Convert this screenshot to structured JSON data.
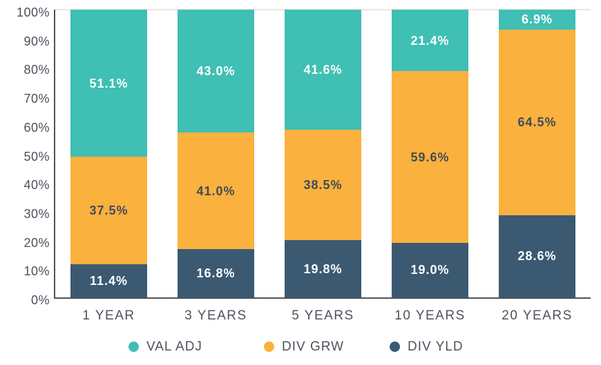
{
  "chart_data": {
    "type": "bar",
    "variant": "stacked-percent-column",
    "title": "",
    "categories": [
      "1 YEAR",
      "3 YEARS",
      "5 YEARS",
      "10 YEARS",
      "20 YEARS"
    ],
    "series": [
      {
        "name": "VAL ADJ",
        "color": "#40bfb4",
        "label_color": "#ffffff",
        "values": [
          51.1,
          43.0,
          41.6,
          21.4,
          6.9
        ]
      },
      {
        "name": "DIV GRW",
        "color": "#fbb13e",
        "label_color": "#414b58",
        "values": [
          37.5,
          41.0,
          38.5,
          59.6,
          64.5
        ]
      },
      {
        "name": "DIV YLD",
        "color": "#3b5a72",
        "label_color": "#ffffff",
        "values": [
          11.4,
          16.8,
          19.8,
          19.0,
          28.6
        ]
      }
    ],
    "value_suffix": "%",
    "y_ticks": [
      "100%",
      "90%",
      "80%",
      "70%",
      "60%",
      "50%",
      "40%",
      "30%",
      "20%",
      "10%",
      "0%"
    ],
    "ylim": [
      0,
      100
    ],
    "grid": "top-line-only",
    "legend_position": "bottom",
    "legend_entries": [
      "VAL ADJ",
      "DIV GRW",
      "DIV YLD"
    ]
  },
  "colors": {
    "background": "#ffffff",
    "axis_line": "#4d525a",
    "top_gridline": "#ede5da",
    "tick_text": "#4a515c",
    "category_text": "#4c535e"
  }
}
